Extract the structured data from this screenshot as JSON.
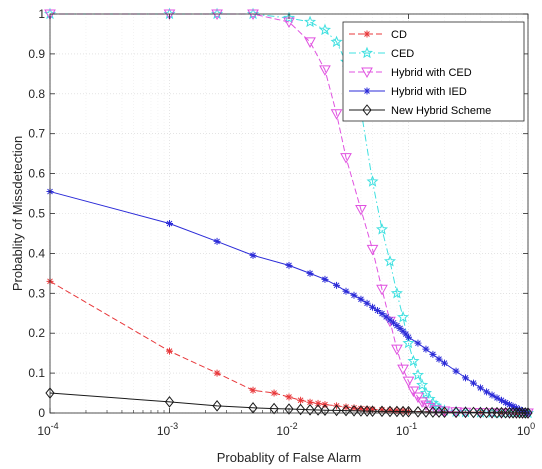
{
  "chart_data": {
    "type": "line",
    "xscale": "log",
    "xlim": [
      0.0001,
      1
    ],
    "ylim": [
      0,
      1
    ],
    "grid": true,
    "legend_position": "top-right",
    "xlabel": "Probablity of False Alarm",
    "ylabel": "Probablity of Missdetection",
    "xticks": [
      {
        "value": 0.0001,
        "base": "10",
        "exp": "-4"
      },
      {
        "value": 0.001,
        "base": "10",
        "exp": "-3"
      },
      {
        "value": 0.01,
        "base": "10",
        "exp": "-2"
      },
      {
        "value": 0.1,
        "base": "10",
        "exp": "-1"
      },
      {
        "value": 1,
        "base": "10",
        "exp": "0"
      }
    ],
    "yticks": [
      "0",
      "0.1",
      "0.2",
      "0.3",
      "0.4",
      "0.5",
      "0.6",
      "0.7",
      "0.8",
      "0.9",
      "1"
    ],
    "series": [
      {
        "name": "CD",
        "color": "#e8383b",
        "dash": "dashed",
        "marker": "asterisk",
        "x": [
          0.0001,
          0.001,
          0.0025,
          0.005,
          0.0075,
          0.01,
          0.0125,
          0.015,
          0.0175,
          0.02,
          0.025,
          0.03,
          0.035,
          0.04,
          0.045,
          0.05,
          0.06,
          0.07,
          0.08,
          0.09,
          0.1,
          0.2,
          0.4,
          0.6,
          0.8,
          1
        ],
        "y": [
          0.33,
          0.155,
          0.1,
          0.057,
          0.05,
          0.04,
          0.032,
          0.027,
          0.024,
          0.021,
          0.018,
          0.015,
          0.013,
          0.011,
          0.01,
          0.009,
          0.008,
          0.007,
          0.006,
          0.005,
          0.004,
          0.003,
          0.002,
          0.001,
          0.0005,
          0
        ]
      },
      {
        "name": "CED",
        "color": "#3fe0e0",
        "dash": "dashdot",
        "marker": "star",
        "x": [
          0.0001,
          0.001,
          0.0025,
          0.005,
          0.01,
          0.015,
          0.02,
          0.025,
          0.03,
          0.04,
          0.05,
          0.06,
          0.07,
          0.08,
          0.09,
          0.1,
          0.11,
          0.12,
          0.13,
          0.14,
          0.15,
          0.16,
          0.17,
          0.18,
          0.2,
          0.25,
          0.3,
          0.4,
          0.5,
          0.6,
          0.7,
          0.8,
          0.9,
          1
        ],
        "y": [
          1,
          1,
          1,
          1,
          0.99,
          0.98,
          0.96,
          0.93,
          0.88,
          0.76,
          0.58,
          0.46,
          0.38,
          0.3,
          0.24,
          0.175,
          0.13,
          0.095,
          0.07,
          0.05,
          0.035,
          0.025,
          0.018,
          0.012,
          0.006,
          0.003,
          0.002,
          0.001,
          0.0005,
          0.0003,
          0.0002,
          0.0001,
          5e-05,
          0
        ]
      },
      {
        "name": "Hybrid with CED",
        "color": "#e052e0",
        "dash": "dashed",
        "marker": "triangle-down",
        "x": [
          0.0001,
          0.001,
          0.0025,
          0.005,
          0.01,
          0.015,
          0.02,
          0.025,
          0.03,
          0.04,
          0.05,
          0.06,
          0.07,
          0.08,
          0.09,
          0.1,
          0.11,
          0.12,
          0.13,
          0.14,
          0.15,
          0.17,
          0.2,
          0.25,
          0.3,
          0.4,
          0.5,
          0.6,
          0.7,
          0.8,
          0.9,
          1
        ],
        "y": [
          1,
          1,
          1,
          1,
          0.98,
          0.93,
          0.86,
          0.75,
          0.64,
          0.51,
          0.41,
          0.31,
          0.23,
          0.16,
          0.11,
          0.08,
          0.055,
          0.04,
          0.028,
          0.02,
          0.014,
          0.008,
          0.005,
          0.003,
          0.002,
          0.001,
          0.0005,
          0.0003,
          0.0002,
          0.0001,
          5e-05,
          0
        ]
      },
      {
        "name": "Hybrid with IED",
        "color": "#2b2bd8",
        "dash": "solid",
        "marker": "asterisk",
        "x": [
          0.0001,
          0.001,
          0.0025,
          0.005,
          0.01,
          0.015,
          0.02,
          0.025,
          0.03,
          0.035,
          0.04,
          0.045,
          0.05,
          0.055,
          0.06,
          0.065,
          0.07,
          0.075,
          0.08,
          0.085,
          0.09,
          0.095,
          0.1,
          0.12,
          0.14,
          0.16,
          0.18,
          0.2,
          0.25,
          0.3,
          0.35,
          0.4,
          0.45,
          0.5,
          0.55,
          0.6,
          0.65,
          0.7,
          0.75,
          0.8,
          0.85,
          0.9,
          0.95,
          1
        ],
        "y": [
          0.555,
          0.475,
          0.43,
          0.395,
          0.37,
          0.35,
          0.335,
          0.32,
          0.305,
          0.295,
          0.285,
          0.275,
          0.265,
          0.257,
          0.249,
          0.241,
          0.233,
          0.226,
          0.219,
          0.212,
          0.205,
          0.198,
          0.19,
          0.175,
          0.16,
          0.147,
          0.135,
          0.125,
          0.105,
          0.088,
          0.075,
          0.063,
          0.053,
          0.045,
          0.038,
          0.032,
          0.026,
          0.021,
          0.017,
          0.013,
          0.009,
          0.006,
          0.003,
          0
        ]
      },
      {
        "name": "New Hybrid Scheme",
        "color": "#1a1a1a",
        "dash": "solid",
        "marker": "diamond",
        "x": [
          0.0001,
          0.001,
          0.0025,
          0.005,
          0.0075,
          0.01,
          0.0125,
          0.015,
          0.0175,
          0.02,
          0.025,
          0.03,
          0.035,
          0.04,
          0.045,
          0.05,
          0.06,
          0.07,
          0.08,
          0.09,
          0.1,
          0.12,
          0.14,
          0.16,
          0.18,
          0.2,
          0.25,
          0.3,
          0.35,
          0.4,
          0.45,
          0.5,
          0.55,
          0.6,
          0.65,
          0.7,
          0.75,
          0.8,
          0.85,
          0.9,
          0.95,
          1
        ],
        "y": [
          0.05,
          0.028,
          0.018,
          0.013,
          0.011,
          0.01,
          0.009,
          0.008,
          0.0075,
          0.007,
          0.0065,
          0.006,
          0.0055,
          0.005,
          0.0048,
          0.0045,
          0.0042,
          0.004,
          0.0038,
          0.0036,
          0.0034,
          0.003,
          0.0027,
          0.0024,
          0.0022,
          0.002,
          0.0018,
          0.0016,
          0.0014,
          0.0012,
          0.001,
          0.0009,
          0.0008,
          0.0007,
          0.0006,
          0.0005,
          0.0004,
          0.0003,
          0.0002,
          0.0001,
          5e-05,
          0
        ]
      }
    ]
  }
}
